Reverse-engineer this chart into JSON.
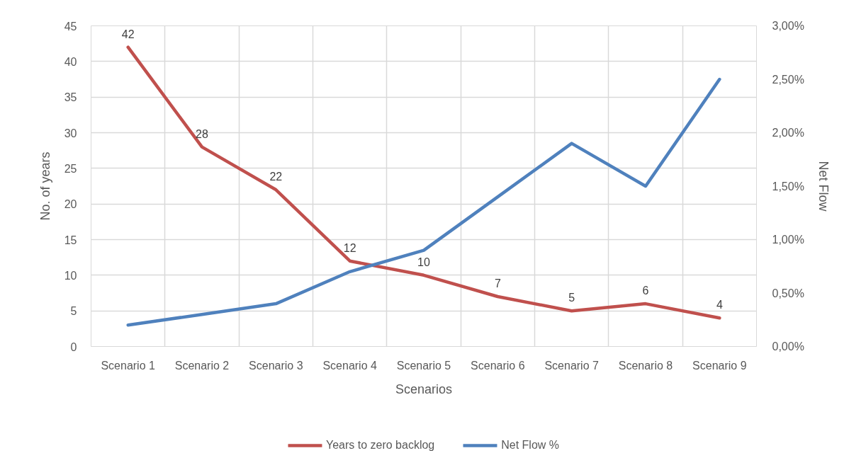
{
  "chart_data": {
    "type": "line",
    "xlabel": "Scenarios",
    "ylabel": "No. of years",
    "y2label": "Net Flow",
    "categories": [
      "Scenario 1",
      "Scenario 2",
      "Scenario 3",
      "Scenario 4",
      "Scenario 5",
      "Scenario 6",
      "Scenario 7",
      "Scenario 8",
      "Scenario 9"
    ],
    "series": [
      {
        "name": "Years to zero backlog",
        "color": "#c0504d",
        "values": [
          42,
          28,
          22,
          12,
          10,
          7,
          5,
          6,
          4
        ],
        "data_labels": true
      },
      {
        "name": "Net Flow %",
        "color": "#4f81bd",
        "axis": "y2",
        "values": [
          0.2,
          0.3,
          0.4,
          0.7,
          0.9,
          1.4,
          1.9,
          1.5,
          2.5
        ]
      }
    ],
    "ylim": [
      0,
      45
    ],
    "yticks": [
      0,
      5,
      10,
      15,
      20,
      25,
      30,
      35,
      40,
      45
    ],
    "y2lim": [
      0,
      3
    ],
    "y2ticks": [
      {
        "value": 0,
        "label": "0,00%"
      },
      {
        "value": 0.5,
        "label": "0,50%"
      },
      {
        "value": 1,
        "label": "1,00%"
      },
      {
        "value": 1.5,
        "label": "1,50%"
      },
      {
        "value": 2,
        "label": "2,00%"
      },
      {
        "value": 2.5,
        "label": "2,50%"
      },
      {
        "value": 3,
        "label": "3,00%"
      }
    ],
    "grid": true,
    "legend": "bottom"
  }
}
